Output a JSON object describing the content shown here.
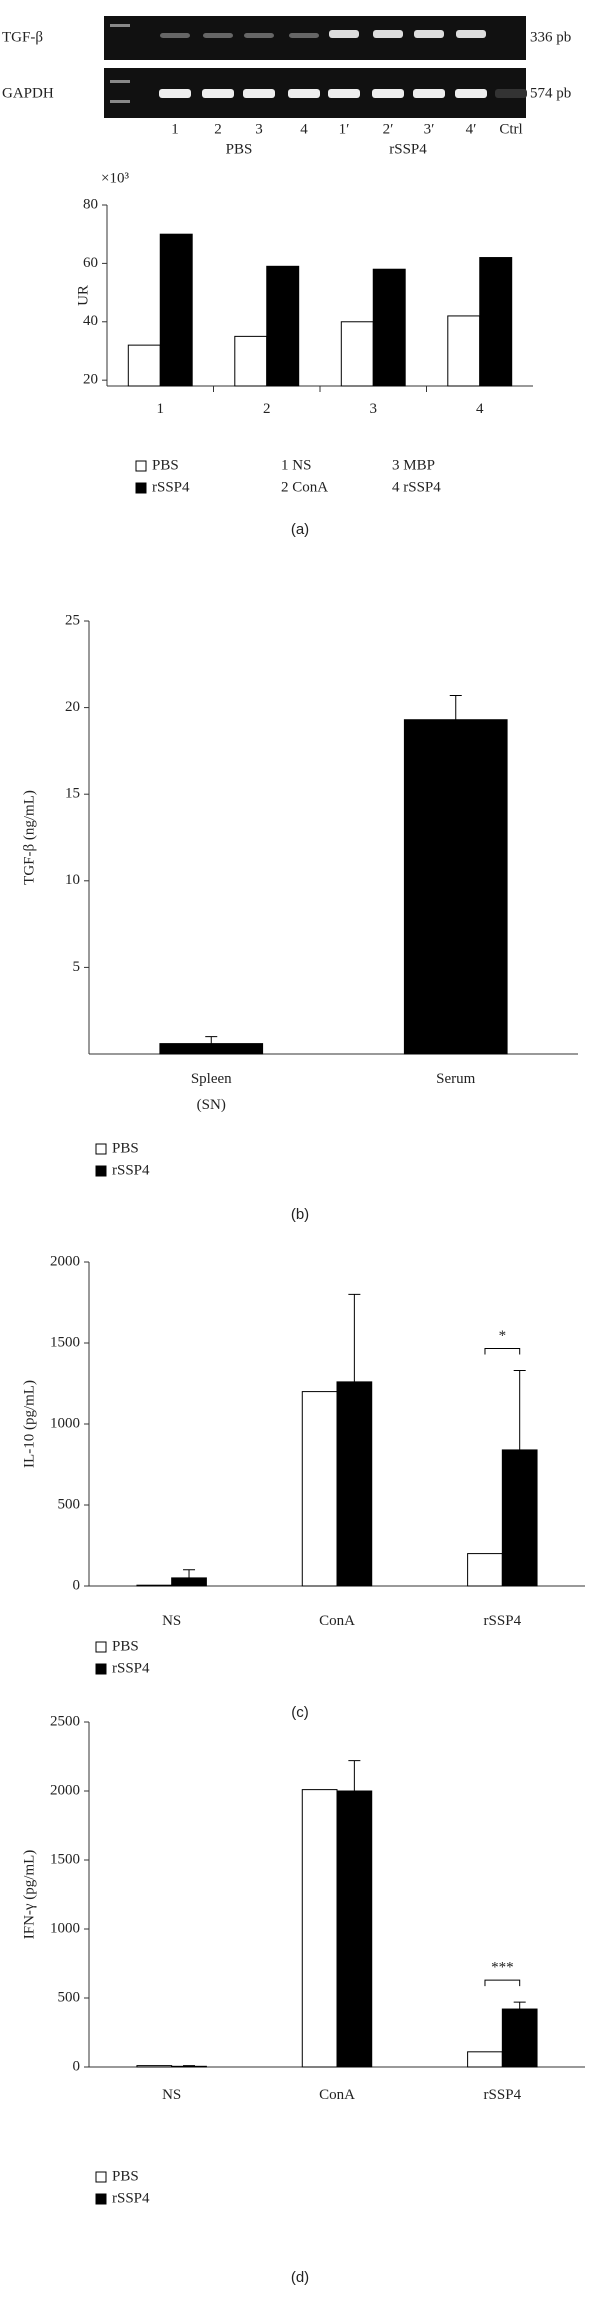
{
  "gel": {
    "row_labels": [
      "TGF-β",
      "GAPDH"
    ],
    "size_labels": [
      "336 pb",
      "574 pb"
    ],
    "lane_labels": [
      "1",
      "2",
      "3",
      "4",
      "1′",
      "2′",
      "3′",
      "4′",
      "Ctrl"
    ],
    "group_labels": [
      "PBS",
      "rSSP4"
    ]
  },
  "chart_data": [
    {
      "type": "bar",
      "panel_label": "(a)",
      "y_label": "UR",
      "y_unit_label": "×10³",
      "categories": [
        "1",
        "2",
        "3",
        "4"
      ],
      "series": [
        {
          "name": "PBS",
          "color": "#ffffff",
          "values": [
            32,
            35,
            40,
            42
          ]
        },
        {
          "name": "rSSP4",
          "color": "#000000",
          "values": [
            70,
            59,
            58,
            62
          ]
        }
      ],
      "category_key": [
        "1 NS",
        "2 ConA",
        "3 MBP",
        "4 rSSP4"
      ],
      "ylim": [
        18,
        80
      ],
      "yticks": [
        20,
        40,
        60,
        80
      ]
    },
    {
      "type": "bar",
      "panel_label": "(b)",
      "y_label": "TGF-β (ng/mL)",
      "categories": [
        "Spleen (SN)",
        "Serum"
      ],
      "series": [
        {
          "name": "PBS",
          "color": "#ffffff",
          "values": [
            null,
            null
          ]
        },
        {
          "name": "rSSP4",
          "color": "#000000",
          "values": [
            0.6,
            19.3
          ],
          "errors": [
            0.4,
            1.4
          ]
        }
      ],
      "ylim": [
        0,
        25
      ],
      "yticks": [
        5,
        10,
        15,
        20,
        25
      ]
    },
    {
      "type": "bar",
      "panel_label": "(c)",
      "y_label": "IL-10 (pg/mL)",
      "categories": [
        "NS",
        "ConA",
        "rSSP4"
      ],
      "series": [
        {
          "name": "PBS",
          "color": "#ffffff",
          "values": [
            5,
            1200,
            200
          ]
        },
        {
          "name": "rSSP4",
          "color": "#000000",
          "values": [
            50,
            1260,
            840
          ],
          "errors": [
            50,
            540,
            490
          ]
        }
      ],
      "significance": [
        {
          "category": "rSSP4",
          "label": "*"
        }
      ],
      "ylim": [
        0,
        2000
      ],
      "yticks": [
        0,
        500,
        1000,
        1500,
        2000
      ]
    },
    {
      "type": "bar",
      "panel_label": "(d)",
      "y_label": "IFN-γ (pg/mL)",
      "categories": [
        "NS",
        "ConA",
        "rSSP4"
      ],
      "series": [
        {
          "name": "PBS",
          "color": "#ffffff",
          "values": [
            10,
            2010,
            110
          ]
        },
        {
          "name": "rSSP4",
          "color": "#000000",
          "values": [
            5,
            2000,
            420
          ],
          "errors": [
            5,
            220,
            50
          ]
        }
      ],
      "significance": [
        {
          "category": "rSSP4",
          "label": "***"
        }
      ],
      "ylim": [
        0,
        2500
      ],
      "yticks": [
        0,
        500,
        1000,
        1500,
        2000,
        2500
      ]
    }
  ]
}
